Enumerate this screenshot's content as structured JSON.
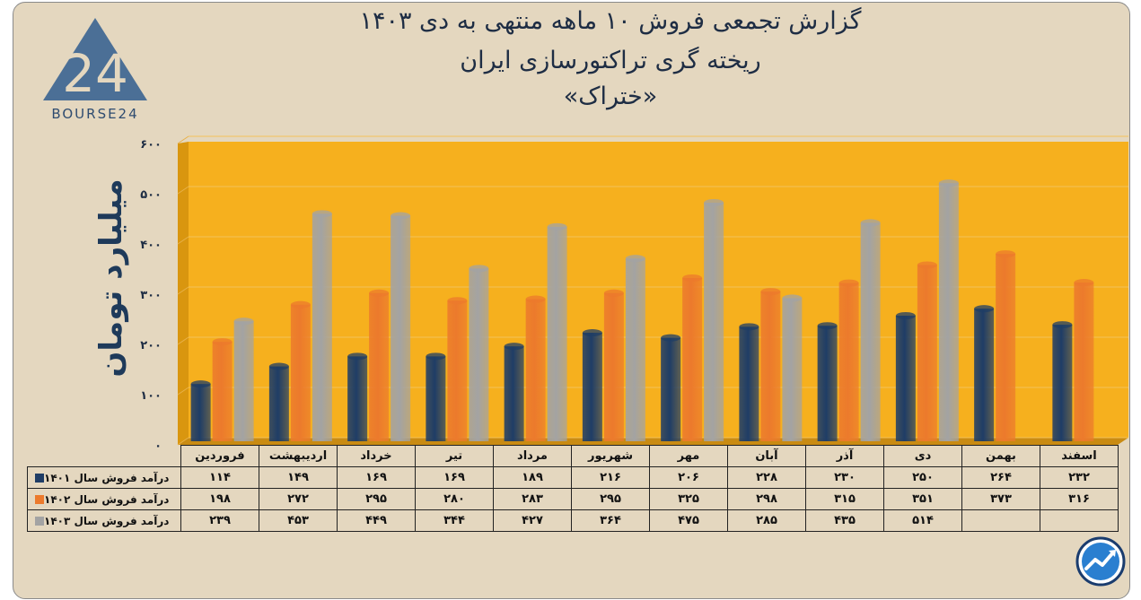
{
  "logo": {
    "brand_text": "BOURSE24",
    "mark_text": "24"
  },
  "title": {
    "line1": "گزارش تجمعی فروش ۱۰ ماهه منتهی به دی ۱۴۰۳",
    "line2": "ریخته گری تراکتورسازی ایران",
    "line3": "«ختراک»"
  },
  "chart_data": {
    "type": "bar",
    "ylabel": "میلیارد تومان",
    "ylim": [
      0,
      600
    ],
    "yticks": [
      "۰",
      "۱۰۰",
      "۲۰۰",
      "۳۰۰",
      "۴۰۰",
      "۵۰۰",
      "۶۰۰"
    ],
    "ytick_values": [
      0,
      100,
      200,
      300,
      400,
      500,
      600
    ],
    "grid": true,
    "categories": [
      "فروردین",
      "اردیبهشت",
      "خرداد",
      "تیر",
      "مرداد",
      "شهریور",
      "مهر",
      "آبان",
      "آذر",
      "دی",
      "بهمن",
      "اسفند"
    ],
    "series": [
      {
        "name": "درآمد فروش سال ۱۴۰۱",
        "color": "#1f3d66",
        "values": [
          114,
          149,
          169,
          169,
          189,
          216,
          206,
          228,
          230,
          250,
          264,
          232
        ],
        "labels": [
          "۱۱۴",
          "۱۴۹",
          "۱۶۹",
          "۱۶۹",
          "۱۸۹",
          "۲۱۶",
          "۲۰۶",
          "۲۲۸",
          "۲۳۰",
          "۲۵۰",
          "۲۶۴",
          "۲۳۲"
        ]
      },
      {
        "name": "درآمد فروش سال ۱۴۰۲",
        "color": "#ec7a2c",
        "values": [
          198,
          272,
          295,
          280,
          283,
          295,
          325,
          298,
          315,
          351,
          373,
          316
        ],
        "labels": [
          "۱۹۸",
          "۲۷۲",
          "۲۹۵",
          "۲۸۰",
          "۲۸۳",
          "۲۹۵",
          "۳۲۵",
          "۲۹۸",
          "۳۱۵",
          "۳۵۱",
          "۳۷۳",
          "۳۱۶"
        ]
      },
      {
        "name": "درآمد فروش سال ۱۴۰۳",
        "color": "#a3a3a3",
        "values": [
          239,
          453,
          449,
          344,
          427,
          364,
          475,
          285,
          435,
          514,
          null,
          null
        ],
        "labels": [
          "۲۳۹",
          "۴۵۳",
          "۴۴۹",
          "۳۴۴",
          "۴۲۷",
          "۳۶۴",
          "۴۷۵",
          "۲۸۵",
          "۴۳۵",
          "۵۱۴",
          "",
          ""
        ]
      }
    ]
  },
  "colors": {
    "plot_background": "#f6b01e",
    "frame_background": "#e4d7bf"
  }
}
